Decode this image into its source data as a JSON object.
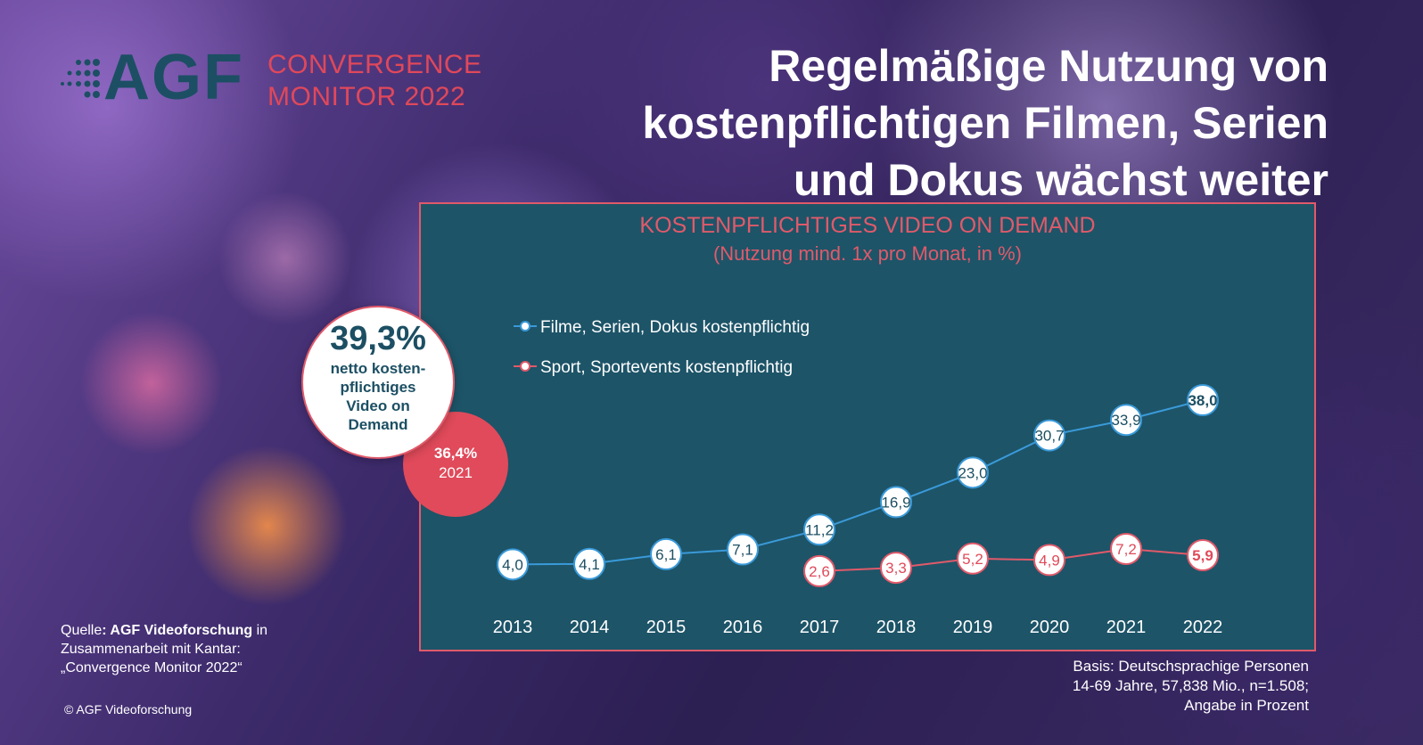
{
  "logo": {
    "brand": "AGF",
    "line1": "CONVERGENCE",
    "line2": "MONITOR 2022"
  },
  "headline": {
    "line1": "Regelmäßige Nutzung von",
    "line2": "kostenpflichtigen Filmen, Serien",
    "line3": "und Dokus wächst weiter"
  },
  "badge_big": {
    "value": "39,3%",
    "label": "netto kosten-pflichtiges Video on Demand"
  },
  "badge_small": {
    "value": "36,4%",
    "year": "2021"
  },
  "source": {
    "prefix": "Quelle",
    "bold": ": AGF Videoforschung",
    "rest": " in Zusammenarbeit mit Kantar: „Convergence Monitor 2022“"
  },
  "copyright": "© AGF  Videoforschung",
  "basis": {
    "line1": "Basis: Deutschsprachige Personen",
    "line2": "14-69 Jahre, 57,838 Mio., n=1.508;",
    "line3": "Angabe in Prozent"
  },
  "colors": {
    "panel": "#1d5468",
    "accent": "#e05a6a",
    "series1": "#3a9ad9",
    "series2": "#e05a6a",
    "brand": "#1c4f63"
  },
  "chart_data": {
    "type": "line",
    "title": "KOSTENPFLICHTIGES VIDEO ON DEMAND",
    "subtitle": "(Nutzung mind. 1x pro Monat, in %)",
    "categories": [
      "2013",
      "2014",
      "2015",
      "2016",
      "2017",
      "2018",
      "2019",
      "2020",
      "2021",
      "2022"
    ],
    "legend_position": "top-left",
    "grid": false,
    "ylim": [
      0,
      45
    ],
    "series": [
      {
        "name": "Filme, Serien, Dokus kostenpflichtig",
        "values": [
          4.0,
          4.1,
          6.1,
          7.1,
          11.2,
          16.9,
          23.0,
          30.7,
          33.9,
          38.0
        ],
        "labels": [
          "4,0",
          "4,1",
          "6,1",
          "7,1",
          "11,2",
          "16,9",
          "23,0",
          "30,7",
          "33,9",
          "38,0"
        ],
        "color": "#3a9ad9"
      },
      {
        "name": "Sport, Sportevents kostenpflichtig",
        "values": [
          null,
          null,
          null,
          null,
          2.6,
          3.3,
          5.2,
          4.9,
          7.2,
          5.9
        ],
        "labels": [
          null,
          null,
          null,
          null,
          "2,6",
          "3,3",
          "5,2",
          "4,9",
          "7,2",
          "5,9"
        ],
        "color": "#e05a6a"
      }
    ]
  }
}
